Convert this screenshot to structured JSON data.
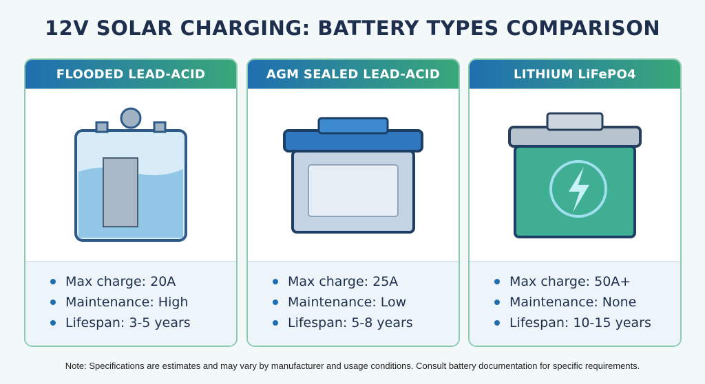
{
  "title": "12V SOLAR CHARGING: BATTERY TYPES COMPARISON",
  "colors": {
    "header_start": "#1f6fb0",
    "header_end": "#3aa77a",
    "title": "#1d2f4c",
    "bullet": "#1f6fb0"
  },
  "cards": [
    {
      "name": "FLOODED LEAD-ACID",
      "icon": "flooded-battery-icon",
      "specs": [
        "Max charge: 20A",
        "Maintenance: High",
        "Lifespan: 3-5 years"
      ]
    },
    {
      "name": "AGM SEALED LEAD-ACID",
      "icon": "agm-battery-icon",
      "specs": [
        "Max charge: 25A",
        "Maintenance: Low",
        "Lifespan: 5-8 years"
      ]
    },
    {
      "name": "LITHIUM LiFePO4",
      "icon": "lithium-battery-icon",
      "specs": [
        "Max charge: 50A+",
        "Maintenance: None",
        "Lifespan: 10-15 years"
      ]
    }
  ],
  "note": "Note: Specifications are estimates and may vary by manufacturer and usage conditions. Consult battery documentation for specific requirements."
}
